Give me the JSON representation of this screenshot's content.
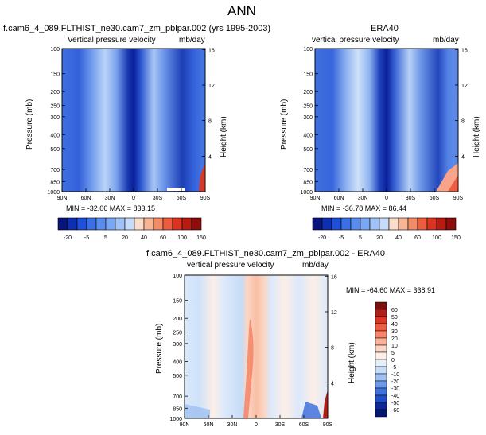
{
  "figure": {
    "title": "ANN"
  },
  "panels": [
    {
      "id": "model",
      "title_left": "f.cam6_4_089.FLTHIST_ne30.cam7_zm_pblpar.002 (yrs 1995-2003)",
      "title_center": "",
      "variable": "Vertical pressure velocity",
      "units": "mb/day",
      "ylabel_left": "Pressure (mb)",
      "ylabel_right": "Height (km)",
      "min_max": "MIN = -32.06   MAX = 833.15",
      "colorbar_labels": [
        "-20",
        "-5",
        "5",
        "20",
        "40",
        "60",
        "100",
        "150"
      ]
    },
    {
      "id": "obs",
      "title_left": "",
      "title_center": "ERA40",
      "variable": "vertical pressure velocity",
      "units": "mb/day",
      "ylabel_left": "Pressure (mb)",
      "ylabel_right": "Height (km)",
      "min_max": "MIN = -36.78   MAX =  86.44",
      "colorbar_labels": [
        "-20",
        "-5",
        "5",
        "20",
        "40",
        "60",
        "100",
        "150"
      ]
    },
    {
      "id": "diff",
      "title_center": "f.cam6_4_089.FLTHIST_ne30.cam7_zm_pblpar.002 - ERA40",
      "variable": "vertical pressure velocity",
      "units": "mb/day",
      "ylabel_left": "Pressure (mb)",
      "ylabel_right": "Height (km)",
      "min_max": "MIN = -64.60   MAX = 338.91",
      "colorbar_labels": [
        "60",
        "50",
        "40",
        "30",
        "20",
        "10",
        "5",
        "0",
        "-5",
        "-10",
        "-20",
        "-30",
        "-40",
        "-50",
        "-60"
      ]
    }
  ],
  "chart_data": [
    {
      "type": "heatmap",
      "title": "f.cam6_4_089.FLTHIST_ne30.cam7_zm_pblpar.002 (yrs 1995-2003)",
      "xlabel": "",
      "ylabel": "Pressure (mb)",
      "ylabel_right": "Height (km)",
      "x_ticks": [
        "90N",
        "60N",
        "30N",
        "0",
        "30S",
        "60S",
        "90S"
      ],
      "y_ticks": [
        100,
        150,
        200,
        250,
        300,
        400,
        500,
        700,
        850,
        1000
      ],
      "y_scale": "log",
      "y_range": [
        1000,
        100
      ],
      "y_reversed": true,
      "y_right_ticks": [
        4,
        8,
        12,
        16
      ],
      "contour_levels": [
        -20,
        -15,
        -10,
        -5,
        0,
        5,
        10,
        15,
        20,
        30,
        40,
        50,
        60,
        80,
        100,
        150
      ],
      "min": -32.06,
      "max": 833.15,
      "colors": {
        "strong_negative": "#0a1f9c",
        "negative": "#3f6fe0",
        "weak_negative": "#a8c6f5",
        "near_zero": "#dbe9fb",
        "positive": "#f4795a",
        "strong_positive": "#b0170f"
      }
    },
    {
      "type": "heatmap",
      "title": "ERA40",
      "xlabel": "",
      "ylabel": "Pressure (mb)",
      "ylabel_right": "Height (km)",
      "x_ticks": [
        "90N",
        "60N",
        "30N",
        "0",
        "30S",
        "60S",
        "90S"
      ],
      "y_ticks": [
        100,
        150,
        200,
        250,
        300,
        400,
        500,
        700,
        850,
        1000
      ],
      "y_scale": "log",
      "y_range": [
        1000,
        100
      ],
      "y_reversed": true,
      "y_right_ticks": [
        4,
        8,
        12,
        16
      ],
      "contour_levels": [
        -20,
        -15,
        -10,
        -5,
        0,
        5,
        10,
        15,
        20,
        30,
        40,
        50,
        60,
        80,
        100,
        150
      ],
      "min": -36.78,
      "max": 86.44
    },
    {
      "type": "heatmap",
      "title": "f.cam6_4_089.FLTHIST_ne30.cam7_zm_pblpar.002 - ERA40",
      "xlabel": "",
      "ylabel": "Pressure (mb)",
      "ylabel_right": "Height (km)",
      "x_ticks": [
        "90N",
        "60N",
        "30N",
        "0",
        "30S",
        "60S",
        "90S"
      ],
      "y_ticks": [
        100,
        150,
        200,
        250,
        300,
        400,
        500,
        700,
        850,
        1000
      ],
      "y_scale": "log",
      "y_range": [
        1000,
        100
      ],
      "y_reversed": true,
      "y_right_ticks": [
        4,
        8,
        12,
        16
      ],
      "contour_levels": [
        -60,
        -50,
        -40,
        -30,
        -20,
        -10,
        -5,
        0,
        5,
        10,
        20,
        30,
        40,
        50,
        60
      ],
      "min": -64.6,
      "max": 338.91
    }
  ],
  "colorbars": {
    "horizontal": [
      "#08137c",
      "#0c2fb4",
      "#1f4fd8",
      "#3a6fe6",
      "#5a8bee",
      "#7aa7f3",
      "#9fc3f7",
      "#c6dcfa",
      "#fbdcc9",
      "#f8b595",
      "#f48b68",
      "#ef5b3f",
      "#dc3223",
      "#b81a14",
      "#8c0d0c"
    ],
    "vertical_top_to_bottom": [
      "#7d0f0a",
      "#b51d13",
      "#dc3525",
      "#f05a3f",
      "#f78766",
      "#fab39a",
      "#fcd6c4",
      "#fdeee6",
      "#e6f0fb",
      "#c7dcf7",
      "#9dc1f2",
      "#6d9aea",
      "#3f72de",
      "#1f4fc8",
      "#0b2a9a",
      "#041672"
    ]
  }
}
